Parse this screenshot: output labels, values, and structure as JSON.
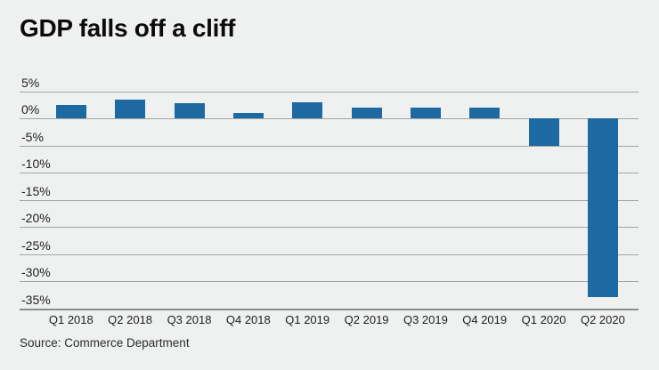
{
  "page": {
    "background_color": "#eff1f0"
  },
  "header": {
    "title": "GDP falls off a cliff"
  },
  "footer": {
    "source": "Source: Commerce Department"
  },
  "chart_data": {
    "type": "bar",
    "title": "GDP falls off a cliff",
    "source": "Source: Commerce Department",
    "categories": [
      "Q1 2018",
      "Q2 2018",
      "Q3 2018",
      "Q4 2018",
      "Q1 2019",
      "Q2 2019",
      "Q3 2019",
      "Q4 2019",
      "Q1 2020",
      "Q2 2020"
    ],
    "values": [
      2.5,
      3.5,
      2.9,
      1.1,
      3.1,
      2.0,
      2.1,
      2.1,
      -5.0,
      -32.9
    ],
    "unit": "%",
    "xlabel": "",
    "ylabel": "",
    "ylim": [
      -35,
      5
    ],
    "ytick_values": [
      5,
      0,
      -5,
      -10,
      -15,
      -20,
      -25,
      -30,
      -35
    ],
    "ytick_labels": [
      "5%",
      "0%",
      "-5%",
      "-10%",
      "-15%",
      "-20%",
      "-25%",
      "-30%",
      "-35%"
    ],
    "grid": true,
    "legend": "none",
    "bar_color": "#1d6aa3",
    "gridline_color": "#a4a6a5",
    "axis_color": "#8b8d8c",
    "text_color": "#1d1d1d"
  }
}
